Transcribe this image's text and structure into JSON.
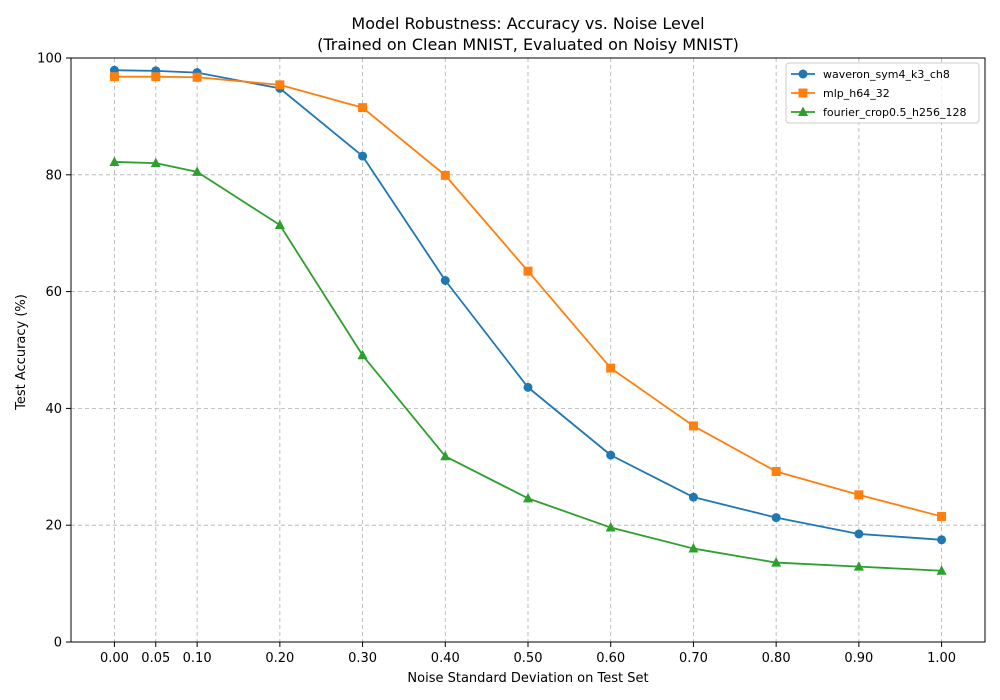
{
  "chart_data": {
    "type": "line",
    "title": "Model Robustness: Accuracy vs. Noise Level",
    "subtitle": "(Trained on Clean MNIST, Evaluated on Noisy MNIST)",
    "xlabel": "Noise Standard Deviation on Test Set",
    "ylabel": "Test Accuracy (%)",
    "x": [
      0.0,
      0.05,
      0.1,
      0.2,
      0.3,
      0.4,
      0.5,
      0.6,
      0.7,
      0.8,
      0.9,
      1.0
    ],
    "x_tick_labels": [
      "0.00",
      "0.05",
      "0.10",
      "0.20",
      "0.30",
      "0.40",
      "0.50",
      "0.60",
      "0.70",
      "0.80",
      "0.90",
      "1.00"
    ],
    "xlim": [
      -0.0525,
      1.0525
    ],
    "ylim": [
      0,
      100
    ],
    "y_ticks": [
      0,
      20,
      40,
      60,
      80,
      100
    ],
    "grid": true,
    "grid_style": "dashed",
    "legend_position": "top-right",
    "series": [
      {
        "name": "waveron_sym4_k3_ch8",
        "color": "#1f77b4",
        "marker": "circle",
        "values": [
          97.9,
          97.8,
          97.5,
          94.8,
          83.2,
          61.9,
          43.6,
          32.0,
          24.8,
          21.3,
          18.5,
          17.5
        ]
      },
      {
        "name": "mlp_h64_32",
        "color": "#ff7f0e",
        "marker": "square",
        "values": [
          96.8,
          96.8,
          96.7,
          95.4,
          91.5,
          79.9,
          63.5,
          46.9,
          37.0,
          29.2,
          25.2,
          21.5
        ]
      },
      {
        "name": "fourier_crop0.5_h256_128",
        "color": "#2ca02c",
        "marker": "triangle",
        "values": [
          82.2,
          82.0,
          80.5,
          71.4,
          49.1,
          31.8,
          24.6,
          19.6,
          16.0,
          13.6,
          12.9,
          12.2
        ]
      }
    ]
  }
}
